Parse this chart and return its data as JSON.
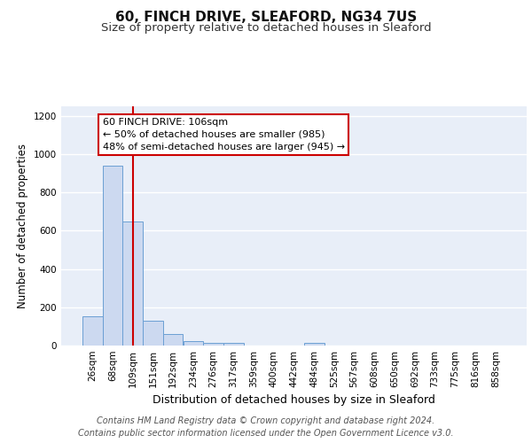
{
  "title": "60, FINCH DRIVE, SLEAFORD, NG34 7US",
  "subtitle": "Size of property relative to detached houses in Sleaford",
  "xlabel": "Distribution of detached houses by size in Sleaford",
  "ylabel": "Number of detached properties",
  "categories": [
    "26sqm",
    "68sqm",
    "109sqm",
    "151sqm",
    "192sqm",
    "234sqm",
    "276sqm",
    "317sqm",
    "359sqm",
    "400sqm",
    "442sqm",
    "484sqm",
    "525sqm",
    "567sqm",
    "608sqm",
    "650sqm",
    "692sqm",
    "733sqm",
    "775sqm",
    "816sqm",
    "858sqm"
  ],
  "values": [
    155,
    940,
    650,
    130,
    60,
    25,
    12,
    12,
    0,
    0,
    0,
    15,
    0,
    0,
    0,
    0,
    0,
    0,
    0,
    0,
    0
  ],
  "bar_color": "#ccd9f0",
  "bar_edge_color": "#6b9fd4",
  "red_line_index": 2,
  "red_line_color": "#cc0000",
  "annotation_text": "60 FINCH DRIVE: 106sqm\n← 50% of detached houses are smaller (985)\n48% of semi-detached houses are larger (945) →",
  "annotation_box_facecolor": "#ffffff",
  "annotation_box_edgecolor": "#cc0000",
  "ylim": [
    0,
    1250
  ],
  "yticks": [
    0,
    200,
    400,
    600,
    800,
    1000,
    1200
  ],
  "bg_color": "#e8eef8",
  "grid_color": "#ffffff",
  "footer_text": "Contains HM Land Registry data © Crown copyright and database right 2024.\nContains public sector information licensed under the Open Government Licence v3.0.",
  "title_fontsize": 11,
  "subtitle_fontsize": 9.5,
  "ylabel_fontsize": 8.5,
  "xlabel_fontsize": 9,
  "tick_fontsize": 7.5,
  "annotation_fontsize": 8,
  "footer_fontsize": 7
}
